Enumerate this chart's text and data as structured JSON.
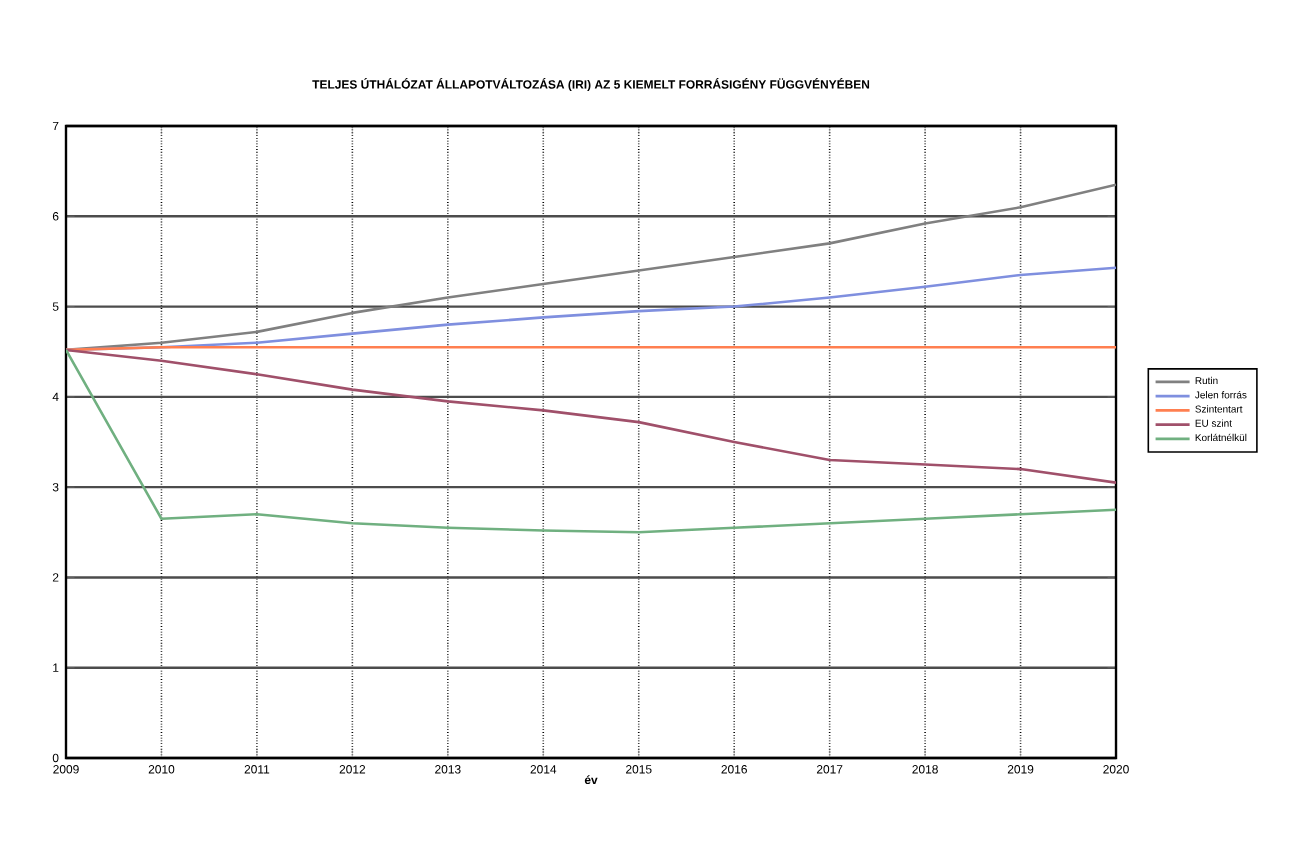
{
  "chart_data": {
    "type": "line",
    "title": "TELJES ÚTHÁLÓZAT ÁLLAPOTVÁLTOZÁSA (IRI) AZ 5 KIEMELT FORRÁSIGÉNY FÜGGVÉNYÉBEN",
    "xlabel": "év",
    "x": [
      2009,
      2010,
      2011,
      2012,
      2013,
      2014,
      2015,
      2016,
      2017,
      2018,
      2019,
      2020
    ],
    "series": [
      {
        "name": "Rutin",
        "color": "#808080",
        "values": [
          4.52,
          4.6,
          4.72,
          4.93,
          5.1,
          5.25,
          5.4,
          5.55,
          5.7,
          5.92,
          6.1,
          6.35
        ]
      },
      {
        "name": "Jelen forrás",
        "color": "#7f8fdf",
        "values": [
          4.52,
          4.55,
          4.6,
          4.7,
          4.8,
          4.88,
          4.95,
          5.0,
          5.1,
          5.22,
          5.35,
          5.43
        ]
      },
      {
        "name": "Szintentart",
        "color": "#ff7f50",
        "values": [
          4.52,
          4.55,
          4.55,
          4.55,
          4.55,
          4.55,
          4.55,
          4.55,
          4.55,
          4.55,
          4.55,
          4.55
        ]
      },
      {
        "name": "EU szint",
        "color": "#a0506a",
        "values": [
          4.52,
          4.4,
          4.25,
          4.08,
          3.95,
          3.85,
          3.72,
          3.5,
          3.3,
          3.25,
          3.2,
          3.05
        ]
      },
      {
        "name": "Korlátnélkül",
        "color": "#70b080",
        "values": [
          4.52,
          2.65,
          2.7,
          2.6,
          2.55,
          2.52,
          2.5,
          2.55,
          2.6,
          2.65,
          2.7,
          2.75
        ]
      }
    ],
    "xlim": [
      2009,
      2020
    ],
    "ylim": [
      0,
      7
    ],
    "xticks": [
      2009,
      2010,
      2011,
      2012,
      2013,
      2014,
      2015,
      2016,
      2017,
      2018,
      2019,
      2020
    ],
    "yticks": [
      0,
      1,
      2,
      3,
      4,
      5,
      6,
      7
    ],
    "grid": true,
    "legend": "right",
    "marker": "none",
    "line_style": "solid"
  }
}
